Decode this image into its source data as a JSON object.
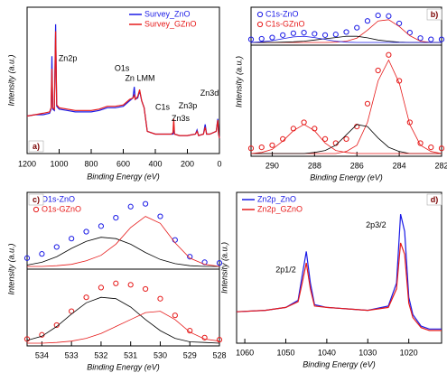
{
  "chart_data": [
    {
      "type": "line",
      "panel_label": "a)",
      "x_label": "Binding Energy (eV)",
      "y_label": "Intensity (a.u.)",
      "legend": "upper right",
      "xlim": [
        1200,
        0
      ],
      "xticks": [
        1200,
        1000,
        800,
        600,
        400,
        200,
        0
      ],
      "ylim": [
        0,
        100
      ],
      "x": [
        1200,
        1150,
        1100,
        1060,
        1050,
        1045,
        1040,
        1030,
        1022,
        1015,
        1000,
        950,
        900,
        850,
        800,
        750,
        700,
        650,
        600,
        560,
        540,
        531,
        525,
        510,
        498,
        485,
        470,
        450,
        400,
        350,
        300,
        290,
        285,
        280,
        250,
        200,
        150,
        140,
        130,
        100,
        89,
        80,
        60,
        20,
        10,
        5,
        0
      ],
      "series": [
        {
          "name": "Survey_ZnO",
          "color": "#1a1ae6",
          "values": [
            25,
            26,
            26,
            27,
            30,
            68,
            30,
            29,
            91,
            32,
            30,
            29,
            28,
            28,
            28,
            29,
            31,
            31,
            32,
            36,
            38,
            46,
            37,
            38,
            43,
            36,
            31,
            14,
            12,
            12,
            12,
            12,
            14,
            12,
            11,
            11,
            12,
            15,
            11,
            12,
            19,
            12,
            12,
            14,
            23,
            12,
            9
          ]
        },
        {
          "name": "Survey_GZnO",
          "color": "#e61a1a",
          "values": [
            25,
            26,
            27,
            28,
            31,
            59,
            31,
            30,
            86,
            33,
            31,
            30,
            29,
            29,
            29,
            30,
            32,
            32,
            33,
            37,
            38,
            40,
            37,
            39,
            44,
            36,
            31,
            14,
            12,
            12,
            12,
            13,
            23,
            12,
            11,
            11,
            12,
            14,
            11,
            12,
            17,
            12,
            12,
            14,
            22,
            12,
            9
          ]
        }
      ],
      "annotations": [
        {
          "text": "Zn2p",
          "x": 946,
          "y": 66
        },
        {
          "text": "O1s",
          "x": 608,
          "y": 59
        },
        {
          "text": "Zn LMM",
          "x": 496,
          "y": 52
        },
        {
          "text": "C1s",
          "x": 355,
          "y": 31
        },
        {
          "text": "Zn3s",
          "x": 242,
          "y": 23
        },
        {
          "text": "Zn3p",
          "x": 197,
          "y": 32
        },
        {
          "text": "Zn3d",
          "x": 62,
          "y": 41
        }
      ]
    },
    {
      "type": "line",
      "panel_label": "b)",
      "x_label": "Binding Energy (eV)",
      "y_label": "Intensity (a.u.)",
      "legend": "upper left",
      "xlim": [
        291,
        282
      ],
      "xticks": [
        290,
        288,
        286,
        284,
        282
      ],
      "ylim": [
        0,
        100
      ],
      "x": [
        291,
        290.5,
        290,
        289.5,
        289,
        288.5,
        288,
        287.5,
        287,
        286.5,
        286,
        285.5,
        285,
        284.5,
        284,
        283.5,
        283,
        282.5,
        282
      ],
      "series": [
        {
          "name": "C1s-ZnO",
          "color": "#1a1ae6",
          "marker": "circle",
          "subplot": 0,
          "values": [
            10,
            12,
            16,
            24,
            30,
            32,
            28,
            24,
            26,
            34,
            48,
            70,
            88,
            86,
            62,
            32,
            14,
            10,
            10
          ]
        },
        {
          "color": "#e61a1a",
          "subplot": 0,
          "values": [
            0,
            0,
            0,
            0,
            0,
            0,
            0,
            0,
            1,
            4,
            14,
            40,
            70,
            74,
            52,
            22,
            4,
            0,
            0
          ]
        },
        {
          "color": "#000000",
          "subplot": 0,
          "values": [
            0,
            0,
            0,
            1,
            2,
            4,
            8,
            12,
            16,
            20,
            20,
            15,
            8,
            4,
            1,
            0,
            0,
            0,
            0
          ]
        },
        {
          "color": "#1a1ae6",
          "subplot": 0,
          "values": [
            0,
            2,
            6,
            12,
            18,
            20,
            16,
            10,
            4,
            1,
            0,
            0,
            0,
            0,
            0,
            0,
            0,
            0,
            0
          ]
        },
        {
          "name": "C1s-GZnO",
          "color": "#e61a1a",
          "marker": "circle",
          "subplot": 1,
          "values": [
            5,
            6,
            8,
            14,
            24,
            30,
            24,
            14,
            10,
            14,
            26,
            48,
            80,
            95,
            70,
            30,
            10,
            6,
            5
          ]
        },
        {
          "color": "#e61a1a",
          "subplot": 1,
          "values": [
            0,
            0,
            0,
            0,
            0,
            0,
            0,
            0,
            0,
            2,
            8,
            30,
            70,
            90,
            68,
            28,
            8,
            2,
            0
          ]
        },
        {
          "color": "#000000",
          "subplot": 1,
          "values": [
            0,
            0,
            0,
            0,
            0,
            0,
            1,
            3,
            8,
            18,
            28,
            26,
            15,
            6,
            2,
            0,
            0,
            0,
            0
          ]
        },
        {
          "color": "#e61a1a",
          "subplot": 1,
          "values": [
            0,
            1,
            4,
            12,
            22,
            28,
            22,
            10,
            3,
            1,
            0,
            0,
            0,
            0,
            0,
            0,
            0,
            0,
            0
          ]
        }
      ]
    },
    {
      "type": "line",
      "panel_label": "c)",
      "x_label": "Binding Energy (eV)",
      "y_label": "Intensity (a.u.)",
      "legend": "upper left",
      "xlim": [
        534.5,
        528
      ],
      "xticks": [
        534,
        533,
        532,
        531,
        530,
        529,
        528
      ],
      "ylim": [
        0,
        100
      ],
      "x": [
        534.5,
        534,
        533.5,
        533,
        532.5,
        532,
        531.5,
        531,
        530.5,
        530,
        529.5,
        529,
        528.5,
        528
      ],
      "series": [
        {
          "name": "O1s-ZnO",
          "color": "#1a1ae6",
          "marker": "circle",
          "subplot": 0,
          "values": [
            12,
            18,
            28,
            40,
            50,
            58,
            70,
            86,
            90,
            72,
            38,
            14,
            6,
            5
          ]
        },
        {
          "color": "#000000",
          "subplot": 0,
          "values": [
            2,
            6,
            14,
            26,
            36,
            42,
            40,
            32,
            20,
            10,
            4,
            1,
            0,
            0
          ]
        },
        {
          "color": "#e61a1a",
          "subplot": 0,
          "values": [
            0,
            0,
            1,
            3,
            8,
            16,
            32,
            56,
            72,
            62,
            34,
            12,
            3,
            0
          ]
        },
        {
          "name": "O1s-GZnO",
          "color": "#e61a1a",
          "marker": "circle",
          "subplot": 1,
          "values": [
            6,
            12,
            26,
            46,
            66,
            80,
            86,
            84,
            78,
            64,
            40,
            18,
            8,
            5
          ]
        },
        {
          "color": "#000000",
          "subplot": 1,
          "values": [
            4,
            10,
            24,
            42,
            58,
            66,
            64,
            52,
            34,
            18,
            7,
            2,
            1,
            0
          ]
        },
        {
          "color": "#e61a1a",
          "subplot": 1,
          "values": [
            0,
            0,
            1,
            3,
            7,
            14,
            24,
            34,
            44,
            46,
            34,
            16,
            6,
            3
          ]
        }
      ]
    },
    {
      "type": "line",
      "panel_label": "d)",
      "x_label": "Binding Energy (eV)",
      "y_label": "Intensity (a.u.)",
      "legend": "upper left",
      "xlim": [
        1062,
        1012
      ],
      "xticks": [
        1060,
        1050,
        1040,
        1030,
        1020
      ],
      "ylim": [
        0,
        100
      ],
      "x": [
        1062,
        1055,
        1050,
        1047,
        1046,
        1045,
        1044,
        1043,
        1040,
        1035,
        1030,
        1025,
        1023,
        1022,
        1021,
        1020,
        1019,
        1017,
        1015,
        1012
      ],
      "series": [
        {
          "name": "Zn2p_ZnO",
          "color": "#1a1ae6",
          "values": [
            20,
            21,
            23,
            28,
            45,
            62,
            40,
            25,
            23,
            22,
            21,
            24,
            40,
            88,
            76,
            30,
            18,
            10,
            8,
            8
          ]
        },
        {
          "name": "Zn2p_GZnO",
          "color": "#e61a1a",
          "values": [
            20,
            21,
            23,
            27,
            40,
            54,
            36,
            24,
            23,
            22,
            21,
            23,
            36,
            68,
            60,
            26,
            16,
            9,
            7,
            7
          ]
        }
      ],
      "annotations": [
        {
          "text": "2p1/2",
          "x": 1050,
          "y": 49
        },
        {
          "text": "2p3/2",
          "x": 1028,
          "y": 80
        }
      ]
    }
  ]
}
